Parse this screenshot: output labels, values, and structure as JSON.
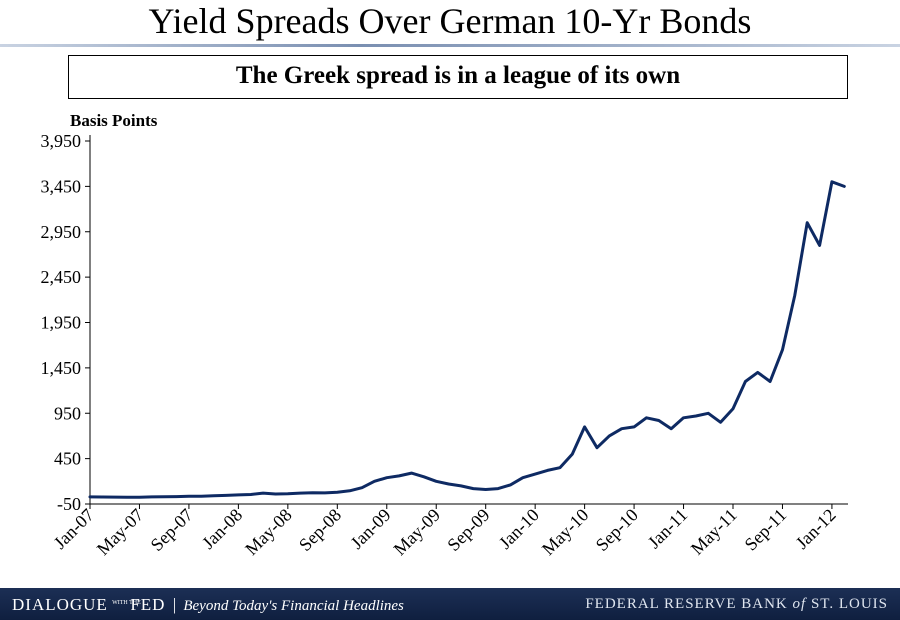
{
  "slide": {
    "title": "Yield Spreads Over German 10-Yr Bonds",
    "subtitle": "The Greek spread is in a league of its own"
  },
  "footer": {
    "brand_part1": "DIALOGUE",
    "brand_with_the": "WITH THE",
    "brand_part2": "FED",
    "separator": "|",
    "tagline": "Beyond Today's Financial Headlines",
    "right_part1": "FEDERAL RESERVE BANK ",
    "right_of": "of",
    "right_part2": " ST. LOUIS",
    "background_color": "#142748"
  },
  "chart_data": {
    "type": "line",
    "title": "",
    "ylabel": "Basis Points",
    "xlabel": "",
    "ylim": [
      -50,
      3950
    ],
    "yticks": [
      "-50",
      "450",
      "950",
      "1,450",
      "1,950",
      "2,450",
      "2,950",
      "3,450",
      "3,950"
    ],
    "xlim": [
      "2007-01",
      "2012-02"
    ],
    "xticks": [
      "Jan-07",
      "May-07",
      "Sep-07",
      "Jan-08",
      "May-08",
      "Sep-08",
      "Jan-09",
      "May-09",
      "Sep-09",
      "Jan-10",
      "May-10",
      "Sep-10",
      "Jan-11",
      "May-11",
      "Sep-11",
      "Jan-12"
    ],
    "grid": false,
    "legend": "none",
    "line_color": "#0e2a63",
    "series": [
      {
        "x": [
          "2007-01",
          "2007-02",
          "2007-03",
          "2007-04",
          "2007-05",
          "2007-06",
          "2007-07",
          "2007-08",
          "2007-09",
          "2007-10",
          "2007-11",
          "2007-12",
          "2008-01",
          "2008-02",
          "2008-03",
          "2008-04",
          "2008-05",
          "2008-06",
          "2008-07",
          "2008-08",
          "2008-09",
          "2008-10",
          "2008-11",
          "2008-12",
          "2009-01",
          "2009-02",
          "2009-03",
          "2009-04",
          "2009-05",
          "2009-06",
          "2009-07",
          "2009-08",
          "2009-09",
          "2009-10",
          "2009-11",
          "2009-12",
          "2010-01",
          "2010-02",
          "2010-03",
          "2010-04",
          "2010-05",
          "2010-06",
          "2010-07",
          "2010-08",
          "2010-09",
          "2010-10",
          "2010-11",
          "2010-12",
          "2011-01",
          "2011-02",
          "2011-03",
          "2011-04",
          "2011-05",
          "2011-06",
          "2011-07",
          "2011-08",
          "2011-09",
          "2011-10",
          "2011-11",
          "2011-12",
          "2012-01",
          "2012-02"
        ],
        "values": [
          28,
          27,
          26,
          25,
          25,
          28,
          30,
          32,
          35,
          35,
          40,
          45,
          50,
          55,
          70,
          60,
          62,
          70,
          75,
          72,
          80,
          95,
          130,
          200,
          240,
          260,
          290,
          250,
          200,
          170,
          150,
          120,
          110,
          120,
          160,
          240,
          280,
          320,
          350,
          500,
          800,
          570,
          700,
          780,
          800,
          900,
          870,
          780,
          900,
          920,
          950,
          850,
          1000,
          1300,
          1400,
          1300,
          1650,
          2250,
          3050,
          2800,
          3500,
          3450
        ]
      }
    ]
  }
}
